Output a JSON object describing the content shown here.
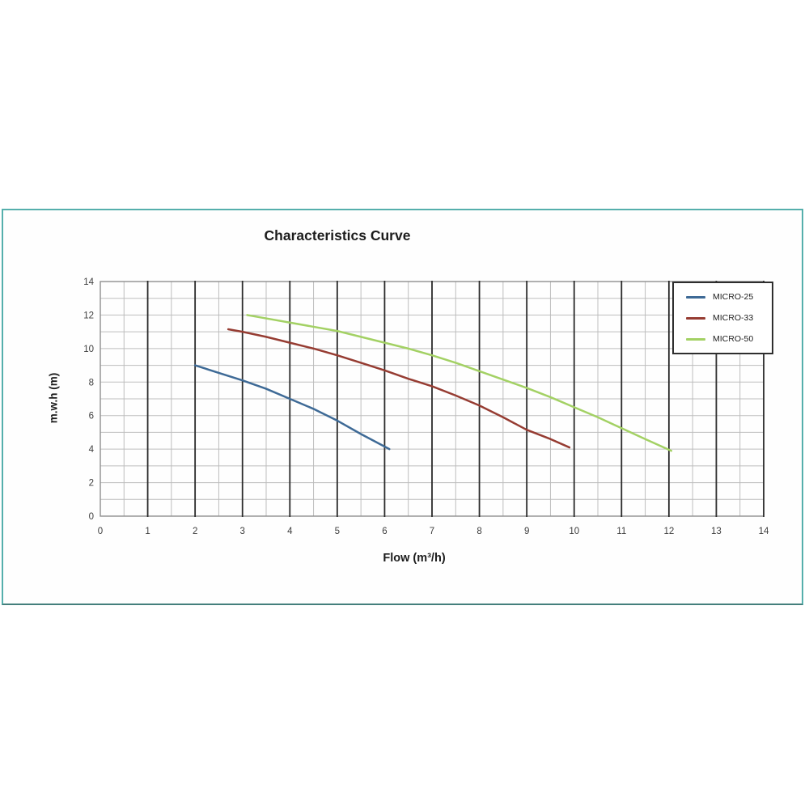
{
  "chart_data": {
    "type": "line",
    "title": "Characteristics Curve",
    "xlabel": "Flow (m³/h)",
    "ylabel": "m.w.h (m)",
    "xlim": [
      0,
      14
    ],
    "ylim": [
      0,
      14
    ],
    "x_ticks": [
      0,
      1,
      2,
      3,
      4,
      5,
      6,
      7,
      8,
      9,
      10,
      11,
      12,
      13,
      14
    ],
    "y_ticks": [
      0,
      2,
      4,
      6,
      8,
      10,
      12,
      14
    ],
    "x_minor_grid_step": 0.5,
    "y_grid_step": 1,
    "grid": true,
    "legend_position": "top-right",
    "colors": {
      "frame": "#8f8f8f",
      "grid_minor": "#bdbdbd",
      "grid_major_vertical": "#2b2b2b",
      "panel_border": "#55afac",
      "tick_text": "#3d3d3d",
      "legend_border": "#2e2e2e"
    },
    "series": [
      {
        "name": "MICRO-25",
        "color": "#3e6a96",
        "points": [
          [
            2,
            9.0
          ],
          [
            2.5,
            8.55
          ],
          [
            3,
            8.1
          ],
          [
            3.5,
            7.6
          ],
          [
            4,
            7.0
          ],
          [
            4.5,
            6.4
          ],
          [
            5,
            5.7
          ],
          [
            5.5,
            4.9
          ],
          [
            6,
            4.15
          ],
          [
            6.1,
            4.0
          ]
        ]
      },
      {
        "name": "MICRO-33",
        "color": "#963c32",
        "points": [
          [
            2.7,
            11.15
          ],
          [
            3,
            11.0
          ],
          [
            3.5,
            10.7
          ],
          [
            4,
            10.35
          ],
          [
            4.5,
            10.0
          ],
          [
            5,
            9.6
          ],
          [
            5.5,
            9.15
          ],
          [
            6,
            8.7
          ],
          [
            6.5,
            8.2
          ],
          [
            7,
            7.75
          ],
          [
            7.5,
            7.2
          ],
          [
            8,
            6.6
          ],
          [
            8.5,
            5.9
          ],
          [
            9,
            5.15
          ],
          [
            9.5,
            4.6
          ],
          [
            9.9,
            4.1
          ]
        ]
      },
      {
        "name": "MICRO-50",
        "color": "#a3d164",
        "points": [
          [
            3.1,
            12.0
          ],
          [
            3.5,
            11.8
          ],
          [
            4,
            11.55
          ],
          [
            4.5,
            11.3
          ],
          [
            5,
            11.05
          ],
          [
            5.5,
            10.7
          ],
          [
            6,
            10.35
          ],
          [
            6.5,
            10.0
          ],
          [
            7,
            9.6
          ],
          [
            7.5,
            9.15
          ],
          [
            8,
            8.65
          ],
          [
            8.5,
            8.15
          ],
          [
            9,
            7.65
          ],
          [
            9.5,
            7.1
          ],
          [
            10,
            6.5
          ],
          [
            10.5,
            5.9
          ],
          [
            11,
            5.25
          ],
          [
            11.5,
            4.6
          ],
          [
            12.05,
            3.9
          ]
        ]
      }
    ]
  }
}
